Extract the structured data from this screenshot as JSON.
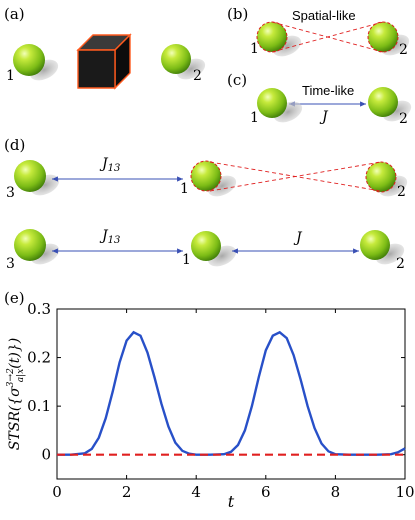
{
  "panels": {
    "a": {
      "label": "(a)",
      "particle_1": "1",
      "particle_2": "2"
    },
    "b": {
      "label": "(b)",
      "title": "Spatial-like",
      "particle_1": "1",
      "particle_2": "2"
    },
    "c": {
      "label": "(c)",
      "title": "Time-like",
      "coupling": "J",
      "particle_1": "1",
      "particle_2": "2"
    },
    "d": {
      "label": "(d)",
      "row1": {
        "coupling": "J13",
        "particle_3": "3",
        "particle_1": "1",
        "particle_2": "2"
      },
      "row2": {
        "coupling_13": "J13",
        "coupling_12": "J",
        "particle_3": "3",
        "particle_1": "1",
        "particle_2": "2"
      }
    },
    "e": {
      "label": "(e)"
    }
  },
  "colors": {
    "sphere_light": "#d8f070",
    "sphere_mid": "#8cc81e",
    "sphere_dark": "#3d7a08",
    "shadow": "#b9b9b9",
    "box_face": "#141414",
    "box_edge": "#ff5a1e",
    "arrow": "#3a50b4",
    "dashed": "#e02020",
    "curve": "#2850c8"
  },
  "chart_data": {
    "type": "line",
    "xlabel": "t",
    "ylabel": "STSR({σ^{3→2}_{a|x}(t)})",
    "xlim": [
      0,
      10
    ],
    "ylim": [
      -0.05,
      0.3
    ],
    "xticks": [
      "0",
      "2",
      "4",
      "6",
      "8",
      "10"
    ],
    "yticks": [
      "0",
      "0.1",
      "0.2",
      "0.3"
    ],
    "series": [
      {
        "style": "solid",
        "color": "#2850c8",
        "x": [
          0,
          0.4,
          0.8,
          1.0,
          1.2,
          1.4,
          1.6,
          1.8,
          2.0,
          2.2,
          2.4,
          2.6,
          2.8,
          3.0,
          3.2,
          3.4,
          3.6,
          3.8,
          4.0,
          4.4,
          4.8,
          5.0,
          5.2,
          5.4,
          5.6,
          5.8,
          6.0,
          6.2,
          6.4,
          6.6,
          6.8,
          7.0,
          7.2,
          7.4,
          7.6,
          7.8,
          8.0,
          8.4,
          8.8,
          9.2,
          9.6,
          9.8,
          10.0
        ],
        "y": [
          0,
          0.0,
          0.003,
          0.012,
          0.035,
          0.075,
          0.13,
          0.19,
          0.235,
          0.252,
          0.245,
          0.21,
          0.16,
          0.105,
          0.058,
          0.025,
          0.008,
          0.002,
          0.0,
          0.0,
          0.001,
          0.006,
          0.02,
          0.05,
          0.1,
          0.16,
          0.215,
          0.245,
          0.252,
          0.24,
          0.205,
          0.155,
          0.1,
          0.055,
          0.023,
          0.007,
          0.001,
          0.0,
          0.0,
          0.0,
          0.001,
          0.005,
          0.013
        ]
      },
      {
        "style": "dashed",
        "color": "#e02020",
        "x": [
          0,
          10
        ],
        "y": [
          0,
          0
        ]
      }
    ]
  }
}
